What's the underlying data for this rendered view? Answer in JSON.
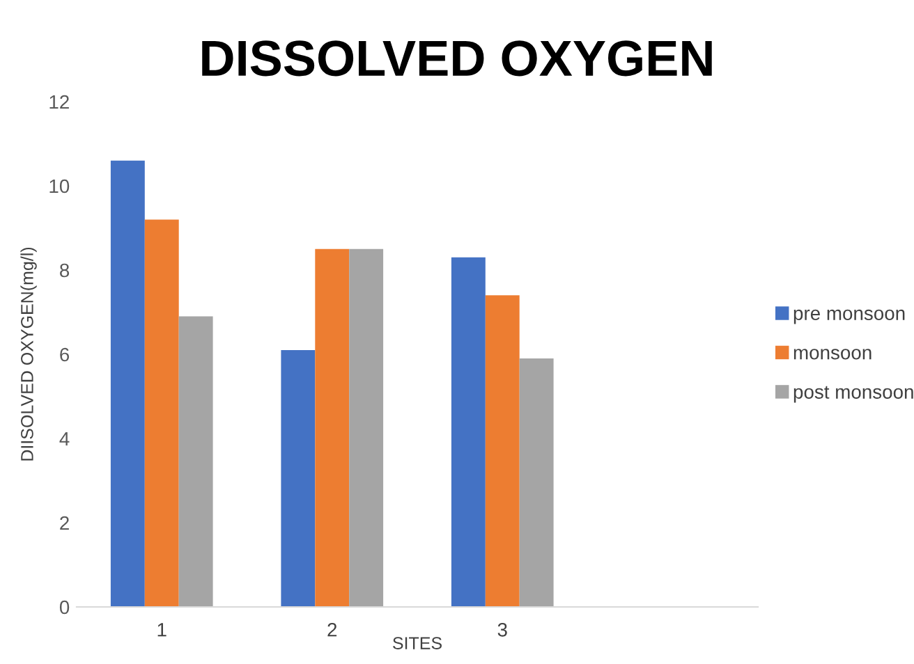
{
  "chart_data": {
    "type": "bar",
    "title": "DISSOLVED OXYGEN",
    "xlabel": "SITES",
    "ylabel": "DIISOLVED OXYGEN(mg/l)",
    "categories": [
      "1",
      "2",
      "3",
      null
    ],
    "series": [
      {
        "name": "pre monsoon",
        "color": "#4472c4",
        "values": [
          10.6,
          6.1,
          8.3,
          null
        ]
      },
      {
        "name": "monsoon",
        "color": "#ed7d31",
        "values": [
          9.2,
          8.5,
          7.4,
          null
        ]
      },
      {
        "name": "post monsoon",
        "color": "#a5a5a5",
        "values": [
          6.9,
          8.5,
          5.9,
          null
        ]
      }
    ],
    "ylim": [
      0,
      12
    ],
    "yticks": [
      0,
      2,
      4,
      6,
      8,
      10,
      12
    ],
    "grid": false,
    "legend": "right"
  }
}
